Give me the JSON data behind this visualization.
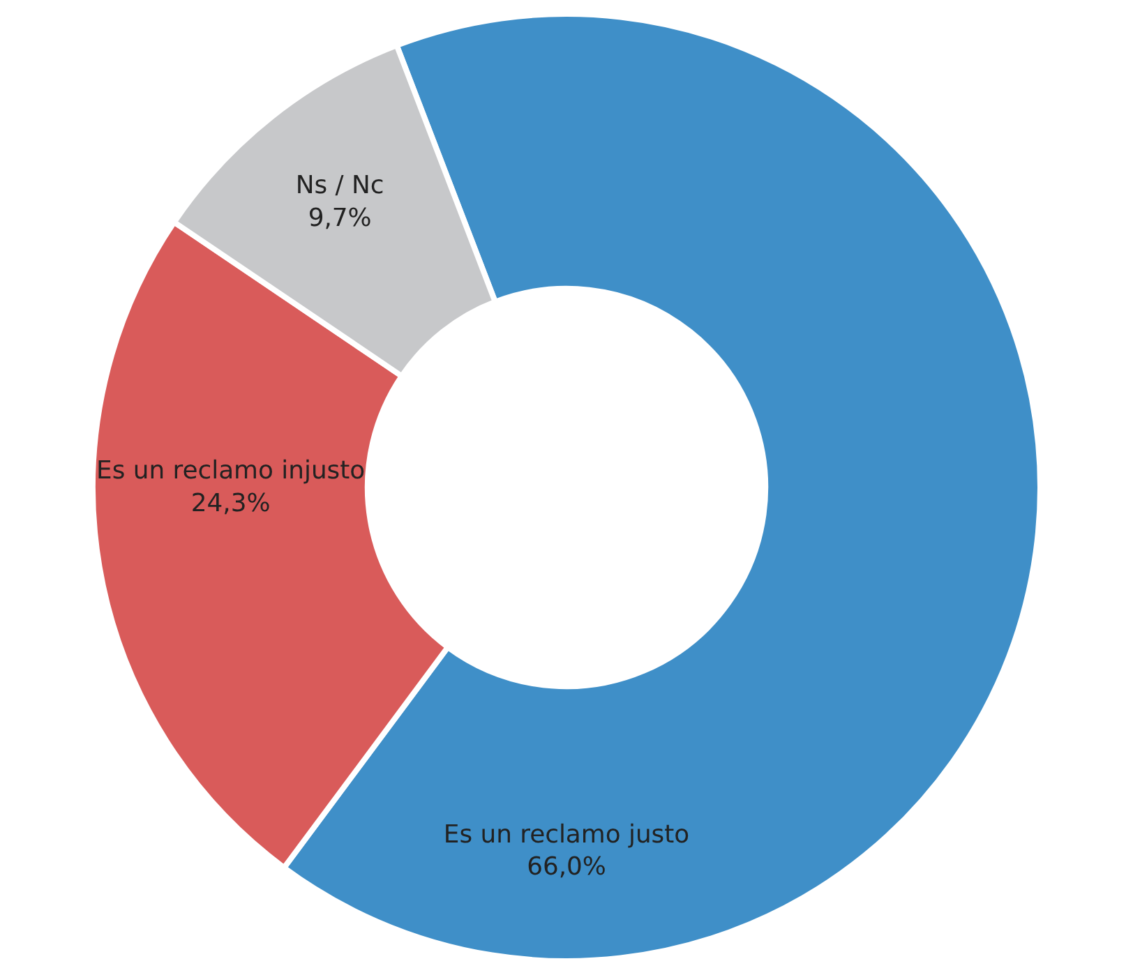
{
  "chart_data": {
    "type": "donut",
    "categories": [
      "Es un reclamo justo",
      "Es un reclamo injusto",
      "Ns / Nc"
    ],
    "values": [
      66.0,
      24.3,
      9.7
    ],
    "value_labels": [
      "66,0%",
      "24,3%",
      "9,7%"
    ],
    "colors": [
      "#3f8fc8",
      "#d95b5a",
      "#c7c8ca"
    ],
    "legend": false
  }
}
